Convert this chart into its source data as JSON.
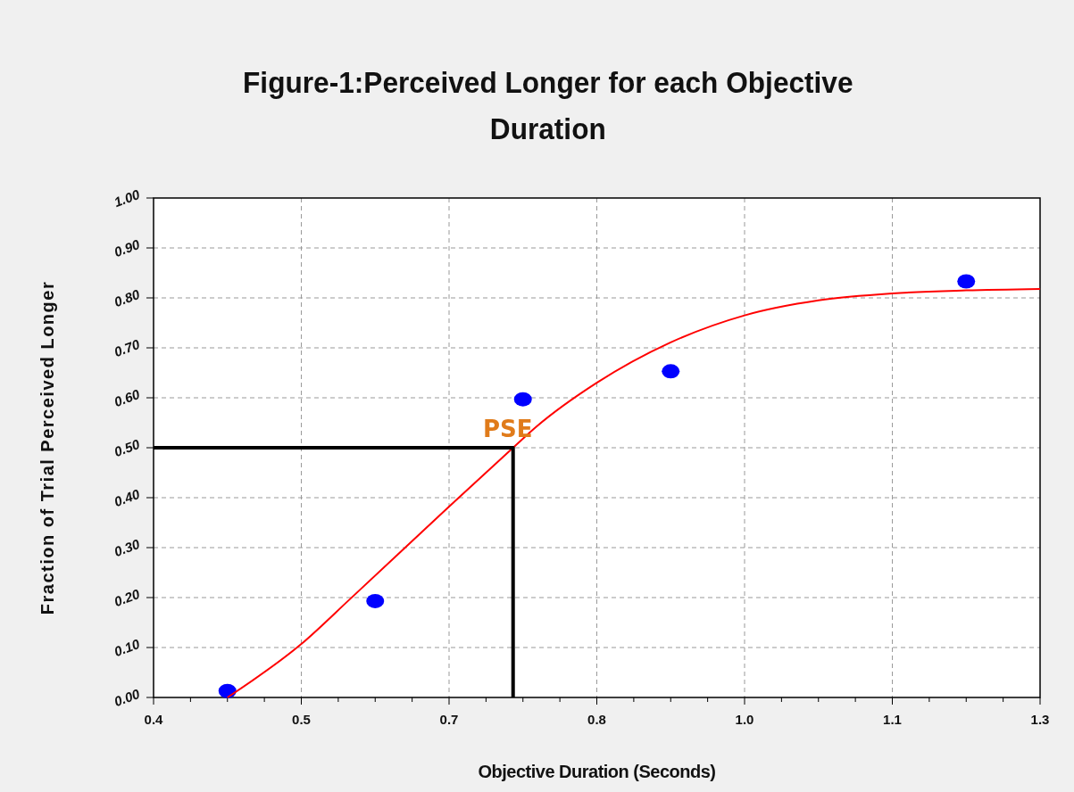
{
  "chart_data": {
    "type": "scatter",
    "title": "Figure-1:Perceived Longer for each  Objective Duration",
    "xlabel": "Objective Duration (Seconds)",
    "ylabel": "Fraction of Trial Perceived Longer",
    "xlim": [
      0.4,
      1.3
    ],
    "xticks": [
      0.4,
      {
        "value": 0.4375,
        "label": null
      },
      {
        "value": 0.475,
        "label": null
      },
      {
        "value": 0.5125,
        "label": null
      },
      {
        "value": 0.55,
        "label": "0.5"
      },
      {
        "value": 0.5875,
        "label": null
      },
      {
        "value": 0.625,
        "label": null
      },
      {
        "value": 0.6625,
        "label": null
      },
      0.7,
      {
        "value": 0.7375,
        "label": null
      },
      {
        "value": 0.775,
        "label": null
      },
      {
        "value": 0.8125,
        "label": null
      },
      {
        "value": 0.85,
        "label": "0.8"
      },
      {
        "value": 0.8875,
        "label": null
      },
      {
        "value": 0.925,
        "label": null
      },
      {
        "value": 0.9625,
        "label": null
      },
      {
        "value": 1.0,
        "label": "1.0"
      },
      {
        "value": 1.0375,
        "label": null
      },
      {
        "value": 1.075,
        "label": null
      },
      {
        "value": 1.1125,
        "label": null
      },
      {
        "value": 1.15,
        "label": "1.1"
      },
      {
        "value": 1.1875,
        "label": null
      },
      {
        "value": 1.225,
        "label": null
      },
      {
        "value": 1.2625,
        "label": null
      },
      1.3
    ],
    "ylim": [
      0,
      1
    ],
    "yticks": [
      {
        "value": 0,
        "label": "0.00"
      },
      {
        "value": 0.1,
        "label": "0.10"
      },
      {
        "value": 0.2,
        "label": "0.20"
      },
      {
        "value": 0.3,
        "label": "0.30"
      },
      {
        "value": 0.4,
        "label": "0.40"
      },
      {
        "value": 0.5,
        "label": "0.50"
      },
      {
        "value": 0.6,
        "label": "0.60"
      },
      {
        "value": 0.7,
        "label": "0.70"
      },
      {
        "value": 0.8,
        "label": "0.80"
      },
      {
        "value": 0.9,
        "label": "0.90"
      },
      {
        "value": 1.0,
        "label": "1.00"
      }
    ],
    "grid": true,
    "series": [
      {
        "type": "line",
        "color": "#ff0000",
        "x": [
          0.475,
          0.55,
          0.6,
          0.7,
          0.765,
          0.788,
          0.85,
          0.924,
          1.0,
          1.075,
          1.15,
          1.225,
          1.3
        ],
        "values": [
          0,
          0.107,
          0.198,
          0.382,
          0.5,
          0.541,
          0.63,
          0.71,
          0.765,
          0.795,
          0.809,
          0.815,
          0.818
        ]
      },
      {
        "marker": "circle",
        "color": "#0000ff",
        "x": [
          0.475,
          0.625,
          0.775,
          0.925,
          1.225
        ],
        "values": [
          0.013,
          0.193,
          0.597,
          0.653,
          0.833
        ]
      },
      {
        "type": "line",
        "color": "#000000",
        "x": [
          0.4,
          0.765,
          0.765
        ],
        "values": [
          0.5,
          0.5,
          0
        ]
      }
    ],
    "annotations": [
      {
        "text": "PSE",
        "x": 0.765,
        "y": 0.5
      }
    ]
  }
}
